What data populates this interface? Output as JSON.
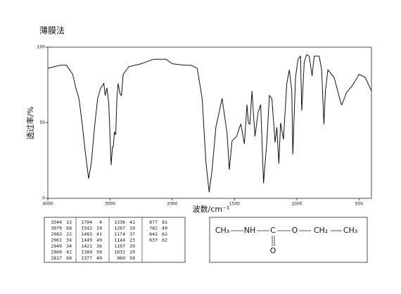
{
  "chart_data": {
    "type": "line",
    "title": "薄膜法",
    "x_label": "波数/cm⁻¹",
    "y_label": "透过率/%",
    "x": [
      4000,
      3800,
      3700,
      3600,
      3550,
      3500,
      3450,
      3400,
      3344,
      3300,
      3250,
      3200,
      3150,
      3100,
      3079,
      3050,
      3020,
      2983,
      2961,
      2949,
      2930,
      2909,
      2890,
      2870,
      2840,
      2817,
      2790,
      2700,
      2500,
      2300,
      2200,
      2100,
      2000,
      1900,
      1850,
      1800,
      1760,
      1730,
      1704,
      1680,
      1650,
      1600,
      1560,
      1542,
      1520,
      1483,
      1460,
      1449,
      1421,
      1400,
      1389,
      1377,
      1360,
      1336,
      1310,
      1290,
      1267,
      1240,
      1220,
      1200,
      1174,
      1160,
      1144,
      1130,
      1107,
      1080,
      1060,
      1040,
      1032,
      1010,
      990,
      970,
      960,
      940,
      920,
      900,
      877,
      860,
      820,
      800,
      782,
      770,
      750,
      700,
      642,
      637,
      600,
      550,
      500,
      450,
      400
    ],
    "values": [
      86,
      88,
      88,
      82,
      73,
      66,
      50,
      31,
      13,
      24,
      47,
      66,
      73,
      76,
      68,
      73,
      62,
      22,
      34,
      34,
      44,
      42,
      66,
      76,
      69,
      68,
      82,
      87,
      89,
      92,
      92,
      92,
      89,
      88,
      88,
      86,
      66,
      24,
      4,
      19,
      47,
      66,
      43,
      19,
      38,
      41,
      47,
      49,
      36,
      62,
      50,
      49,
      71,
      41,
      57,
      62,
      10,
      38,
      68,
      66,
      37,
      47,
      23,
      50,
      39,
      76,
      85,
      71,
      29,
      80,
      92,
      94,
      58,
      90,
      95,
      94,
      81,
      94,
      94,
      85,
      49,
      71,
      85,
      80,
      62,
      62,
      70,
      75,
      82,
      80,
      71
    ],
    "color": "#111111",
    "xlim": [
      4000,
      400
    ],
    "xticks": [
      4000,
      3000,
      2000,
      1500,
      1000,
      500
    ],
    "ylim": [
      0,
      100
    ],
    "yticks": [
      0,
      50,
      100
    ]
  },
  "peak_table": [
    [
      [
        3344,
        13
      ],
      [
        3079,
        68
      ],
      [
        2983,
        22
      ],
      [
        2961,
        34
      ],
      [
        2949,
        34
      ],
      [
        2909,
        42
      ],
      [
        2817,
        68
      ]
    ],
    [
      [
        1704,
        4
      ],
      [
        1542,
        19
      ],
      [
        1483,
        41
      ],
      [
        1449,
        49
      ],
      [
        1421,
        36
      ],
      [
        1389,
        50
      ],
      [
        1377,
        49
      ]
    ],
    [
      [
        1336,
        41
      ],
      [
        1267,
        10
      ],
      [
        1174,
        37
      ],
      [
        1144,
        23
      ],
      [
        1107,
        39
      ],
      [
        1032,
        29
      ],
      [
        960,
        58
      ]
    ],
    [
      [
        877,
        81
      ],
      [
        782,
        49
      ],
      [
        642,
        62
      ],
      [
        637,
        62
      ]
    ]
  ],
  "structure": {
    "chain": [
      "CH₃",
      "NH",
      "C",
      "O",
      "CH₂",
      "CH₃"
    ],
    "carbonyl_oxygen": "O"
  }
}
